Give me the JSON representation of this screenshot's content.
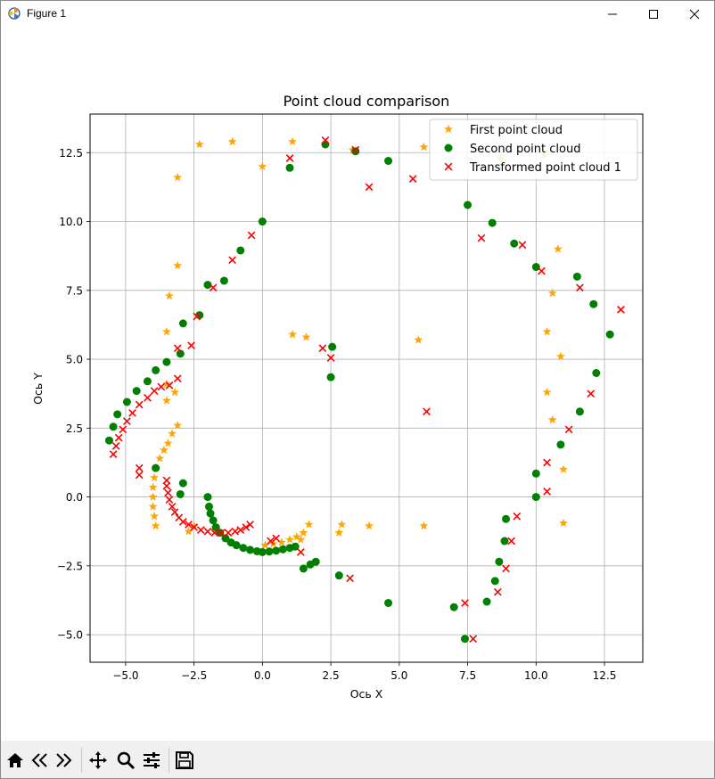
{
  "window": {
    "title": "Figure 1",
    "icons": {
      "app": "matplotlib-app-icon",
      "minimize": "minimize-icon",
      "maximize": "maximize-icon",
      "close": "close-icon"
    }
  },
  "toolbar": {
    "buttons": [
      "home-icon",
      "back-arrow-icon",
      "forward-arrow-icon",
      "pan-move-icon",
      "zoom-magnifier-icon",
      "configure-subplots-icon",
      "save-floppy-icon"
    ]
  },
  "chart_data": {
    "type": "scatter",
    "title": "Point cloud comparison",
    "xlabel": "Ось X",
    "ylabel": "Ось Y",
    "xlim": [
      -6.3,
      13.9
    ],
    "ylim": [
      -6.0,
      13.9
    ],
    "xticks": [
      -5.0,
      -2.5,
      0.0,
      2.5,
      5.0,
      7.5,
      10.0,
      12.5
    ],
    "xtick_labels": [
      "−5.0",
      "−2.5",
      "0.0",
      "2.5",
      "5.0",
      "7.5",
      "10.0",
      "12.5"
    ],
    "yticks": [
      -5.0,
      -2.5,
      0.0,
      2.5,
      5.0,
      7.5,
      10.0,
      12.5
    ],
    "ytick_labels": [
      "−5.0",
      "−2.5",
      "0.0",
      "2.5",
      "5.0",
      "7.5",
      "10.0",
      "12.5"
    ],
    "grid": true,
    "legend_position": "top-right",
    "series": [
      {
        "name": "First point cloud",
        "marker": "star",
        "color": "#ffa500",
        "points": [
          [
            -3.1,
            11.6
          ],
          [
            -2.3,
            12.8
          ],
          [
            -1.1,
            12.9
          ],
          [
            0.0,
            12.0
          ],
          [
            1.1,
            12.9
          ],
          [
            3.3,
            12.6
          ],
          [
            5.9,
            12.7
          ],
          [
            8.7,
            12.3
          ],
          [
            10.3,
            12.4
          ],
          [
            10.8,
            9.0
          ],
          [
            10.6,
            7.4
          ],
          [
            10.4,
            6.0
          ],
          [
            10.9,
            5.1
          ],
          [
            10.4,
            3.8
          ],
          [
            10.6,
            2.8
          ],
          [
            11.0,
            1.0
          ],
          [
            11.0,
            -0.95
          ],
          [
            3.9,
            -1.05
          ],
          [
            5.9,
            -1.05
          ],
          [
            2.9,
            -1.0
          ],
          [
            2.8,
            -1.3
          ],
          [
            -3.1,
            8.4
          ],
          [
            -3.4,
            7.3
          ],
          [
            -3.5,
            6.0
          ],
          [
            -3.5,
            4.1
          ],
          [
            -3.5,
            3.5
          ],
          [
            -3.2,
            3.8
          ],
          [
            -3.1,
            2.6
          ],
          [
            -3.3,
            2.3
          ],
          [
            -3.45,
            1.95
          ],
          [
            -3.6,
            1.7
          ],
          [
            -3.75,
            1.4
          ],
          [
            -3.9,
            1.05
          ],
          [
            -3.95,
            0.7
          ],
          [
            -4.0,
            0.35
          ],
          [
            -4.0,
            0.0
          ],
          [
            -4.0,
            -0.35
          ],
          [
            -3.95,
            -0.7
          ],
          [
            -3.9,
            -1.05
          ],
          [
            -2.7,
            -1.25
          ],
          [
            -2.5,
            -1.05
          ],
          [
            1.1,
            5.9
          ],
          [
            1.6,
            5.8
          ],
          [
            5.7,
            5.7
          ],
          [
            0.1,
            -1.75
          ],
          [
            0.4,
            -1.7
          ],
          [
            0.7,
            -1.65
          ],
          [
            1.0,
            -1.55
          ],
          [
            1.25,
            -1.45
          ],
          [
            1.5,
            -1.3
          ],
          [
            1.7,
            -1.0
          ],
          [
            1.4,
            -1.55
          ]
        ]
      },
      {
        "name": "Second point cloud",
        "marker": "circle",
        "color": "#008000",
        "points": [
          [
            1.0,
            11.95
          ],
          [
            2.3,
            12.8
          ],
          [
            3.4,
            12.55
          ],
          [
            4.6,
            12.2
          ],
          [
            0.0,
            10.0
          ],
          [
            -0.8,
            8.95
          ],
          [
            -1.4,
            7.85
          ],
          [
            -2.0,
            7.7
          ],
          [
            -2.3,
            6.6
          ],
          [
            -2.9,
            6.3
          ],
          [
            -3.0,
            5.2
          ],
          [
            -3.5,
            4.9
          ],
          [
            -3.9,
            4.6
          ],
          [
            -4.2,
            4.2
          ],
          [
            -4.6,
            3.85
          ],
          [
            -4.95,
            3.45
          ],
          [
            -5.3,
            3.0
          ],
          [
            -5.45,
            2.55
          ],
          [
            -5.6,
            2.05
          ],
          [
            -3.9,
            1.05
          ],
          [
            -2.9,
            0.5
          ],
          [
            -3.0,
            0.1
          ],
          [
            7.5,
            10.6
          ],
          [
            8.4,
            9.95
          ],
          [
            9.2,
            9.2
          ],
          [
            10.0,
            8.35
          ],
          [
            11.5,
            8.0
          ],
          [
            12.1,
            7.0
          ],
          [
            12.7,
            5.9
          ],
          [
            12.2,
            4.5
          ],
          [
            11.6,
            3.1
          ],
          [
            10.9,
            1.9
          ],
          [
            10.0,
            0.85
          ],
          [
            10.0,
            0.0
          ],
          [
            8.9,
            -0.8
          ],
          [
            8.85,
            -1.6
          ],
          [
            8.65,
            -2.35
          ],
          [
            8.5,
            -3.05
          ],
          [
            8.2,
            -3.8
          ],
          [
            7.0,
            -4.0
          ],
          [
            7.4,
            -5.15
          ],
          [
            4.6,
            -3.85
          ],
          [
            2.8,
            -2.85
          ],
          [
            1.5,
            -2.6
          ],
          [
            1.75,
            -2.45
          ],
          [
            1.95,
            -2.35
          ],
          [
            2.5,
            4.35
          ],
          [
            2.55,
            5.45
          ],
          [
            -2.0,
            0.0
          ],
          [
            -1.95,
            -0.35
          ],
          [
            -1.9,
            -0.6
          ],
          [
            -1.8,
            -0.85
          ],
          [
            -1.7,
            -1.1
          ],
          [
            -1.55,
            -1.3
          ],
          [
            -1.35,
            -1.5
          ],
          [
            -1.15,
            -1.65
          ],
          [
            -0.95,
            -1.75
          ],
          [
            -0.7,
            -1.85
          ],
          [
            -0.45,
            -1.92
          ],
          [
            -0.2,
            -1.97
          ],
          [
            0.0,
            -2.0
          ],
          [
            0.25,
            -1.98
          ],
          [
            0.5,
            -1.95
          ],
          [
            0.75,
            -1.9
          ],
          [
            1.0,
            -1.85
          ],
          [
            1.2,
            -1.8
          ]
        ]
      },
      {
        "name": "Transformed point cloud 1",
        "marker": "x",
        "color": "#ff0000",
        "points": [
          [
            1.0,
            12.3
          ],
          [
            2.3,
            12.95
          ],
          [
            3.4,
            12.6
          ],
          [
            3.9,
            11.25
          ],
          [
            5.5,
            11.55
          ],
          [
            -0.4,
            9.5
          ],
          [
            -1.1,
            8.6
          ],
          [
            -1.8,
            7.6
          ],
          [
            -2.4,
            6.55
          ],
          [
            -2.6,
            5.5
          ],
          [
            -3.1,
            5.4
          ],
          [
            -3.1,
            4.3
          ],
          [
            -3.4,
            4.05
          ],
          [
            -3.7,
            4.0
          ],
          [
            -3.95,
            3.85
          ],
          [
            -4.2,
            3.6
          ],
          [
            -4.5,
            3.35
          ],
          [
            -4.75,
            3.05
          ],
          [
            -4.95,
            2.75
          ],
          [
            -5.1,
            2.45
          ],
          [
            -5.25,
            2.15
          ],
          [
            -5.35,
            1.85
          ],
          [
            -5.45,
            1.55
          ],
          [
            -4.5,
            1.05
          ],
          [
            -4.5,
            0.8
          ],
          [
            -3.5,
            0.6
          ],
          [
            -3.5,
            0.4
          ],
          [
            -3.45,
            0.15
          ],
          [
            -3.4,
            -0.1
          ],
          [
            -3.3,
            -0.35
          ],
          [
            -3.2,
            -0.55
          ],
          [
            -3.05,
            -0.75
          ],
          [
            -2.9,
            -0.9
          ],
          [
            -2.7,
            -1.0
          ],
          [
            -2.5,
            -1.1
          ],
          [
            -2.25,
            -1.2
          ],
          [
            -2.0,
            -1.25
          ],
          [
            -1.75,
            -1.3
          ],
          [
            -1.5,
            -1.3
          ],
          [
            -1.25,
            -1.3
          ],
          [
            -1.0,
            -1.25
          ],
          [
            -0.8,
            -1.2
          ],
          [
            -0.6,
            -1.1
          ],
          [
            -0.45,
            -1.0
          ],
          [
            0.3,
            -1.6
          ],
          [
            0.5,
            -1.5
          ],
          [
            1.4,
            -2.0
          ],
          [
            2.2,
            5.4
          ],
          [
            2.5,
            5.05
          ],
          [
            6.0,
            3.1
          ],
          [
            8.0,
            9.4
          ],
          [
            9.5,
            9.15
          ],
          [
            10.2,
            8.2
          ],
          [
            11.6,
            7.6
          ],
          [
            13.1,
            6.8
          ],
          [
            12.0,
            3.75
          ],
          [
            11.2,
            2.45
          ],
          [
            10.4,
            1.25
          ],
          [
            10.4,
            0.2
          ],
          [
            9.3,
            -0.7
          ],
          [
            9.1,
            -1.6
          ],
          [
            8.9,
            -2.6
          ],
          [
            8.6,
            -3.45
          ],
          [
            7.4,
            -3.85
          ],
          [
            7.7,
            -5.15
          ],
          [
            3.2,
            -2.95
          ]
        ]
      }
    ]
  }
}
